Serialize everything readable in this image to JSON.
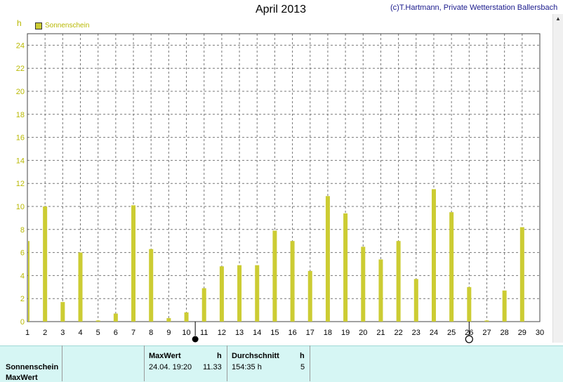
{
  "title": "April 2013",
  "credit": "(c)T.Hartmann, Private Wetterstation Ballersbach",
  "unit": "h",
  "legend_label": "Sonnenschein",
  "colors": {
    "bar": "#cccc33",
    "axis_text": "#b8b800",
    "grid": "#777777",
    "panel": "#d6f6f4"
  },
  "chart_data": {
    "type": "bar",
    "ylabel": "h",
    "ylim": [
      0,
      25
    ],
    "yticks": [
      0,
      2,
      4,
      6,
      8,
      10,
      12,
      14,
      16,
      18,
      20,
      22,
      24
    ],
    "xticks": [
      1,
      2,
      3,
      4,
      5,
      6,
      7,
      8,
      9,
      10,
      11,
      12,
      13,
      14,
      15,
      16,
      17,
      18,
      19,
      20,
      21,
      22,
      23,
      24,
      25,
      26,
      27,
      28,
      29,
      30
    ],
    "grid": true,
    "legend": "top-left",
    "series": [
      {
        "name": "Sonnenschein",
        "x": [
          1,
          2,
          3,
          4,
          5,
          6,
          7,
          8,
          9,
          10,
          11,
          12,
          13,
          14,
          15,
          16,
          17,
          18,
          19,
          20,
          21,
          22,
          23,
          24,
          25,
          26,
          27,
          28,
          29
        ],
        "values": [
          7.0,
          10.0,
          1.7,
          6.0,
          0.1,
          0.7,
          10.1,
          6.3,
          0.3,
          0.8,
          2.9,
          4.8,
          4.9,
          4.9,
          7.9,
          7.0,
          4.4,
          10.9,
          9.4,
          6.5,
          5.4,
          7.0,
          3.7,
          11.5,
          9.5,
          3.0,
          0.1,
          2.7,
          8.2
        ]
      }
    ],
    "markers": [
      {
        "label": "new-moon",
        "x": 10.5
      },
      {
        "label": "full-moon",
        "x": 26
      }
    ]
  },
  "panel": {
    "row1": "Sonnenschein",
    "row2": "MaxWert",
    "max_header": "MaxWert",
    "max_unit": "h",
    "max_datetime": "24.04.  19:20",
    "max_value": "11.33",
    "avg_header": "Durchschnitt",
    "avg_unit": "h",
    "avg_value": "154:35 h",
    "avg_extra": "5"
  }
}
